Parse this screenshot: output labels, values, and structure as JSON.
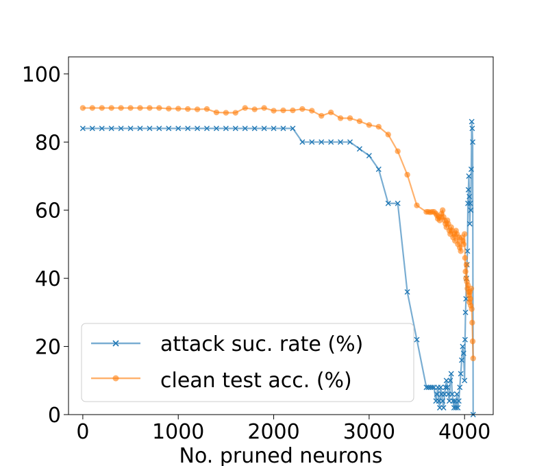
{
  "chart_data": {
    "type": "line",
    "title": "",
    "xlabel": "No. pruned neurons",
    "ylabel": "",
    "xlim": [
      -150,
      4300
    ],
    "ylim": [
      0,
      105
    ],
    "x_ticks": [
      0,
      1000,
      2000,
      3000,
      4000
    ],
    "x_tick_labels": [
      "0",
      "1000",
      "2000",
      "3000",
      "4000"
    ],
    "y_ticks": [
      0,
      20,
      40,
      60,
      80,
      100
    ],
    "y_tick_labels": [
      "0",
      "20",
      "40",
      "60",
      "80",
      "100"
    ],
    "grid": false,
    "legend_position": "lower-left",
    "series": [
      {
        "name": "attack suc. rate (%)",
        "color": "#1f77b4",
        "marker": "x",
        "x": [
          0,
          100,
          200,
          300,
          400,
          500,
          600,
          700,
          800,
          900,
          1000,
          1100,
          1200,
          1300,
          1400,
          1500,
          1600,
          1700,
          1800,
          1900,
          2000,
          2100,
          2200,
          2300,
          2400,
          2500,
          2600,
          2700,
          2800,
          2900,
          3000,
          3100,
          3200,
          3300,
          3400,
          3500,
          3600,
          3620,
          3640,
          3660,
          3680,
          3700,
          3710,
          3720,
          3730,
          3740,
          3750,
          3760,
          3770,
          3780,
          3790,
          3800,
          3810,
          3820,
          3830,
          3840,
          3850,
          3860,
          3870,
          3880,
          3890,
          3900,
          3910,
          3920,
          3930,
          3940,
          3950,
          3960,
          3970,
          3980,
          3990,
          4000,
          4005,
          4010,
          4015,
          4020,
          4025,
          4030,
          4035,
          4040,
          4045,
          4050,
          4055,
          4060,
          4065,
          4070,
          4075,
          4080,
          4085,
          4090
        ],
        "y": [
          84,
          84,
          84,
          84,
          84,
          84,
          84,
          84,
          84,
          84,
          84,
          84,
          84,
          84,
          84,
          84,
          84,
          84,
          84,
          84,
          84,
          84,
          84,
          80,
          80,
          80,
          80,
          80,
          80,
          78,
          76,
          72,
          62,
          62,
          36,
          22,
          8,
          8,
          8,
          8,
          8,
          4,
          6,
          8,
          4,
          2,
          8,
          6,
          4,
          2,
          6,
          8,
          10,
          8,
          6,
          4,
          10,
          12,
          6,
          4,
          2,
          4,
          2,
          6,
          2,
          4,
          8,
          12,
          16,
          20,
          18,
          10,
          22,
          30,
          34,
          40,
          44,
          48,
          62,
          66,
          70,
          64,
          56,
          62,
          60,
          72,
          86,
          84,
          80,
          0
        ]
      },
      {
        "name": "clean test acc. (%)",
        "color": "#ff7f0e",
        "marker": "o",
        "x": [
          0,
          100,
          200,
          300,
          400,
          500,
          600,
          700,
          800,
          900,
          1000,
          1100,
          1200,
          1300,
          1400,
          1500,
          1600,
          1700,
          1800,
          1900,
          2000,
          2100,
          2200,
          2300,
          2400,
          2500,
          2600,
          2700,
          2800,
          2900,
          3000,
          3100,
          3200,
          3300,
          3400,
          3500,
          3600,
          3620,
          3640,
          3660,
          3680,
          3700,
          3710,
          3720,
          3730,
          3740,
          3750,
          3760,
          3770,
          3780,
          3790,
          3800,
          3810,
          3820,
          3830,
          3840,
          3850,
          3860,
          3870,
          3880,
          3890,
          3900,
          3910,
          3920,
          3930,
          3940,
          3950,
          3960,
          3970,
          3980,
          3990,
          4000,
          4005,
          4010,
          4015,
          4020,
          4025,
          4030,
          4035,
          4040,
          4045,
          4050,
          4055,
          4060,
          4065,
          4070,
          4075,
          4080,
          4085,
          4090
        ],
        "y": [
          90,
          90,
          90,
          90,
          90,
          90,
          90,
          90,
          90,
          89.8,
          89.8,
          89.7,
          89.6,
          89.7,
          88.7,
          88.6,
          88.6,
          90,
          89.6,
          90,
          89.2,
          89.3,
          89.3,
          89.7,
          89.2,
          87.7,
          88.7,
          87,
          87,
          86.1,
          85,
          84.5,
          82.2,
          77.3,
          70.4,
          61.4,
          59.5,
          59.5,
          59.4,
          59.5,
          59.5,
          59,
          58.5,
          57.5,
          58,
          57,
          58,
          59,
          60,
          58,
          57,
          56,
          55,
          57,
          56,
          54,
          53,
          55,
          54,
          52,
          53,
          51,
          54,
          53,
          50,
          52,
          49,
          48,
          52,
          51,
          50,
          53,
          46,
          42,
          40,
          44,
          39,
          37,
          38,
          36,
          35,
          33,
          36,
          34,
          32,
          37,
          31,
          27,
          21.5,
          16.5
        ]
      }
    ]
  }
}
